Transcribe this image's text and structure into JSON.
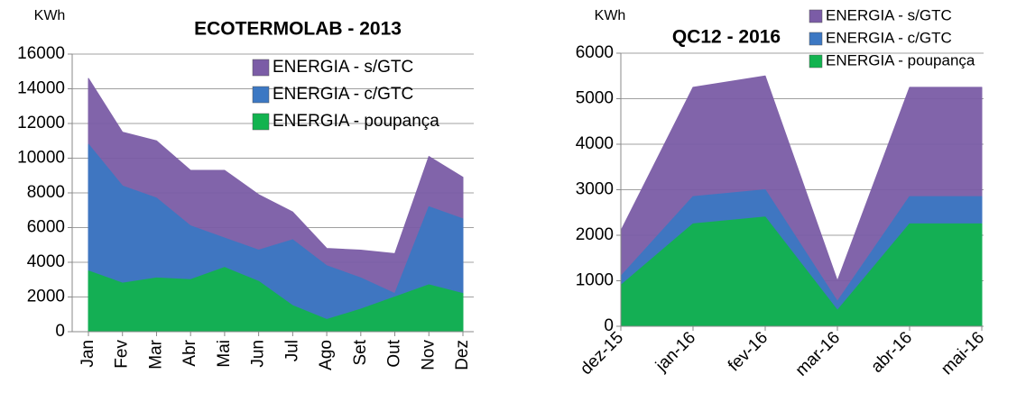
{
  "chart_data": [
    {
      "type": "area",
      "title": "ECOTERMOLAB - 2013",
      "ylabel": "KWh",
      "categories": [
        "Jan",
        "Fev",
        "Mar",
        "Abr",
        "Mai",
        "Jun",
        "Jul",
        "Ago",
        "Set",
        "Out",
        "Nov",
        "Dez"
      ],
      "series": [
        {
          "name": "ENERGIA - s/GTC",
          "color": "#7b5ca6",
          "values": [
            14600,
            11500,
            11000,
            9300,
            9300,
            7900,
            6900,
            4800,
            4700,
            4500,
            10100,
            8900
          ]
        },
        {
          "name": "ENERGIA - c/GTC",
          "color": "#3c78c3",
          "values": [
            10800,
            8400,
            7700,
            6100,
            5400,
            4700,
            5300,
            3800,
            3100,
            2200,
            7200,
            6500
          ]
        },
        {
          "name": "ENERGIA - poupança",
          "color": "#12b34f",
          "values": [
            3500,
            2800,
            3100,
            3000,
            3700,
            2900,
            1500,
            700,
            1300,
            2000,
            2700,
            2200
          ]
        }
      ],
      "ylim": [
        0,
        16000
      ],
      "yticks": [
        0,
        2000,
        4000,
        6000,
        8000,
        10000,
        12000,
        14000,
        16000
      ],
      "grid": true
    },
    {
      "type": "area",
      "title": "QC12 - 2016",
      "ylabel": "KWh",
      "categories": [
        "dez-15",
        "jan-16",
        "fev-16",
        "mar-16",
        "abr-16",
        "mai-16"
      ],
      "series": [
        {
          "name": "ENERGIA - s/GTC",
          "color": "#7b5ca6",
          "values": [
            2100,
            5250,
            5500,
            1000,
            5250,
            5250
          ]
        },
        {
          "name": "ENERGIA - c/GTC",
          "color": "#3c78c3",
          "values": [
            1100,
            2850,
            3000,
            550,
            2850,
            2850
          ]
        },
        {
          "name": "ENERGIA - poupança",
          "color": "#12b34f",
          "values": [
            900,
            2250,
            2400,
            350,
            2250,
            2250
          ]
        }
      ],
      "ylim": [
        0,
        6000
      ],
      "yticks": [
        0,
        1000,
        2000,
        3000,
        4000,
        5000,
        6000
      ],
      "grid": true
    }
  ]
}
